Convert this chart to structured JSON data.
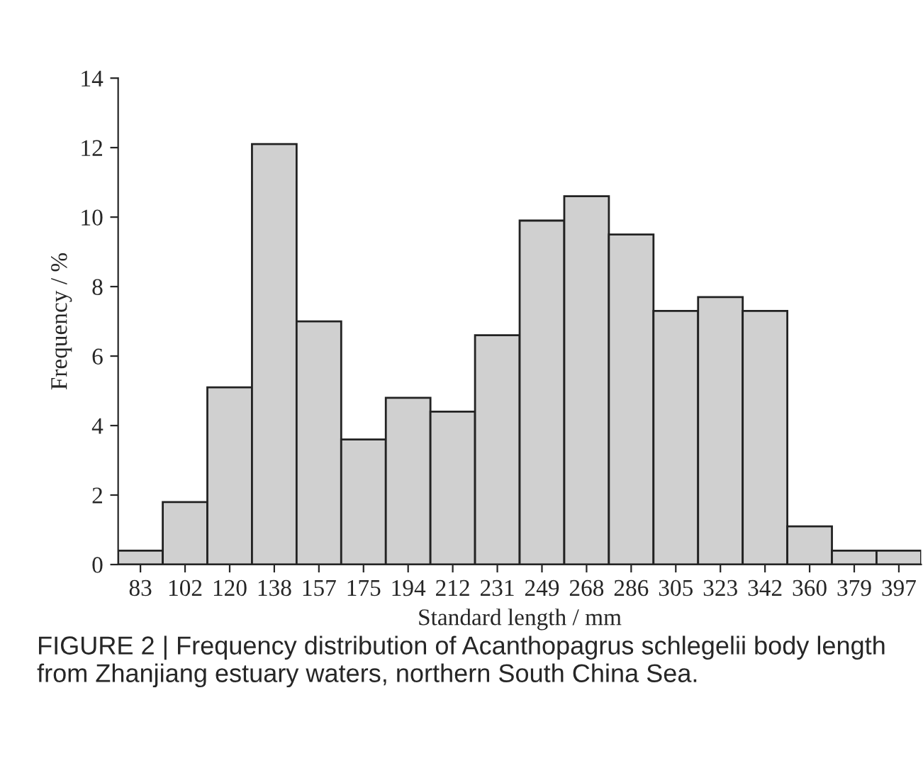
{
  "chart_data": {
    "type": "bar",
    "xlabel": "Standard length / mm",
    "ylabel": "Frequency / %",
    "categories": [
      "83",
      "102",
      "120",
      "138",
      "157",
      "175",
      "194",
      "212",
      "231",
      "249",
      "268",
      "286",
      "305",
      "323",
      "342",
      "360",
      "379",
      "397"
    ],
    "values": [
      0.4,
      1.8,
      5.1,
      12.1,
      7.0,
      3.6,
      4.8,
      4.4,
      6.6,
      9.9,
      10.6,
      9.5,
      7.3,
      7.7,
      7.3,
      1.1,
      0.4,
      0.4
    ],
    "color": "#d0d0d0",
    "ylim": [
      0,
      14
    ],
    "yticks": [
      0,
      2,
      4,
      6,
      8,
      10,
      12,
      14
    ],
    "grid": false,
    "legend": false,
    "annotations": [
      "FIGURE 2 | Frequency distribution of Acanthopagrus schlegelii body length from Zhanjiang estuary waters, northern South China Sea."
    ]
  }
}
